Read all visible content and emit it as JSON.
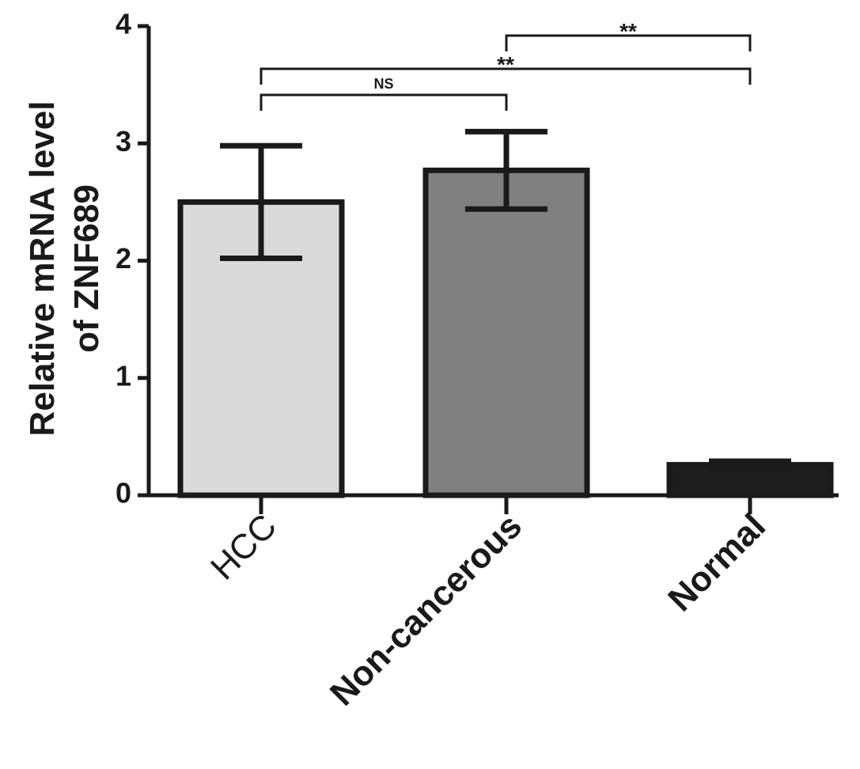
{
  "chart_data": {
    "type": "bar",
    "ylabel": [
      "Relative mRNA level",
      "of ZNF689"
    ],
    "categories": [
      "HCC",
      "Non-cancerous",
      "Normal"
    ],
    "values": [
      2.5,
      2.77,
      0.26
    ],
    "errors": [
      0.48,
      0.33,
      0.03
    ],
    "colors": [
      "#d9d9d9",
      "#808080",
      "#1e1e1e"
    ],
    "ylim": [
      0,
      4
    ],
    "yticks": [
      0,
      1,
      2,
      3,
      4
    ],
    "annotations": [
      {
        "text": "NS",
        "between": [
          "HCC",
          "Non-cancerous"
        ]
      },
      {
        "text": "**",
        "between": [
          "HCC",
          "Normal"
        ]
      },
      {
        "text": "**",
        "between": [
          "Non-cancerous",
          "Normal"
        ]
      }
    ]
  }
}
